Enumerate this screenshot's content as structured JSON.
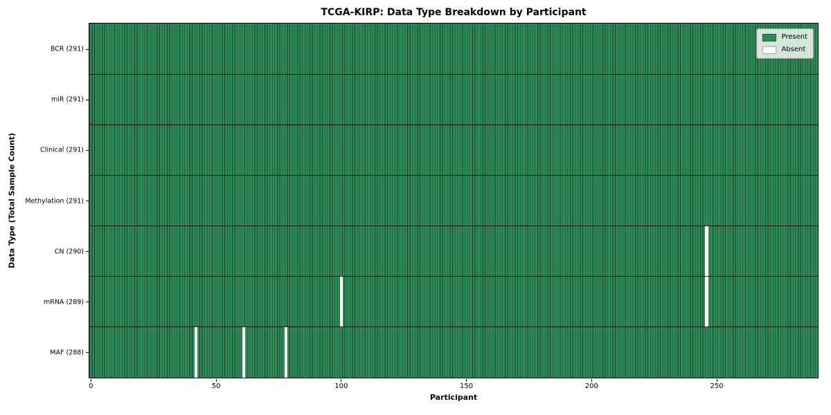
{
  "title": "TCGA-KIRP: Data Type Breakdown by Participant",
  "colors": {
    "present": "#2e8b57",
    "absent": "#ffffff",
    "cell_edge": "rgba(0,0,0,0.55)",
    "row_divider": "#000000",
    "spine": "#000000",
    "legend_border": "#9a9a9a"
  },
  "chart_data": {
    "type": "heatmap",
    "title": "TCGA-KIRP: Data Type Breakdown by Participant",
    "xlabel": "Participant",
    "ylabel": "Data Type (Total Sample Count)",
    "x_ticks": [
      0,
      50,
      100,
      150,
      200,
      250
    ],
    "x_range": [
      -0.5,
      290.5
    ],
    "n_participants": 291,
    "grid": false,
    "legend_position": "upper right",
    "rows": [
      {
        "key": "bcr",
        "label": "BCR (291)",
        "total": 291,
        "absent_participants": []
      },
      {
        "key": "mir",
        "label": "miR (291)",
        "total": 291,
        "absent_participants": []
      },
      {
        "key": "clinical",
        "label": "Clinical (291)",
        "total": 291,
        "absent_participants": []
      },
      {
        "key": "methylation",
        "label": "Methylation (291)",
        "total": 291,
        "absent_participants": []
      },
      {
        "key": "cn",
        "label": "CN (290)",
        "total": 290,
        "absent_participants": [
          246
        ]
      },
      {
        "key": "mrna",
        "label": "mRNA (289)",
        "total": 289,
        "absent_participants": [
          100,
          246
        ]
      },
      {
        "key": "maf",
        "label": "MAF (288)",
        "total": 288,
        "absent_participants": [
          42,
          61,
          78
        ]
      }
    ],
    "legend": [
      {
        "label": "Present",
        "color": "#2e8b57"
      },
      {
        "label": "Absent",
        "color": "#ffffff"
      }
    ]
  }
}
